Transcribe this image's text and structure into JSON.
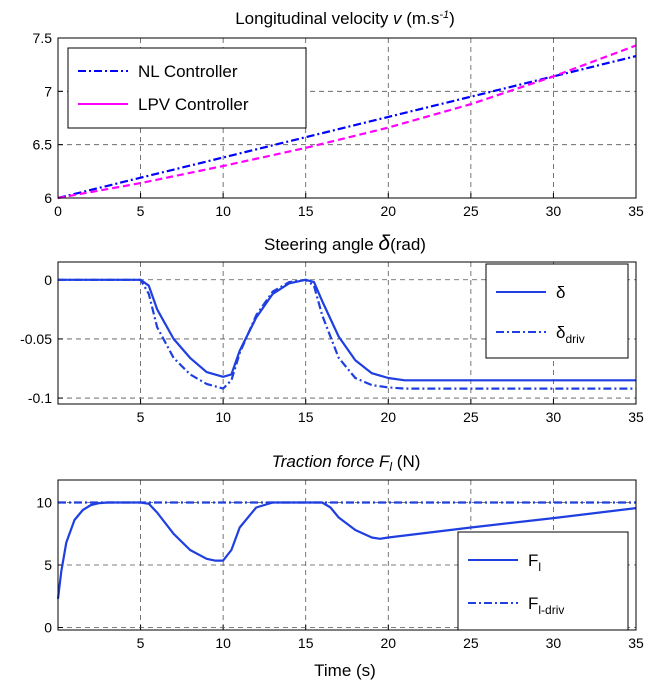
{
  "x_axis_label": "Time (s)",
  "colors": {
    "nl": "#0000ff",
    "lpv": "#ff00ff",
    "blue": "#1f3fe0"
  },
  "chart_data": [
    {
      "type": "line",
      "title": "Longitudinal velocity v (m.s-1)",
      "title_parts": [
        "Longitudinal velocity ",
        "v",
        " (m.s",
        "-1",
        ")"
      ],
      "xlabel": "",
      "ylabel": "",
      "xlim": [
        0,
        35
      ],
      "ylim": [
        6,
        7.5
      ],
      "xticks": [
        "0",
        "5",
        "10",
        "15",
        "20",
        "25",
        "30",
        "35"
      ],
      "yticks": [
        "6",
        "6.5",
        "7",
        "7.5"
      ],
      "grid": true,
      "legend_position": "top-left",
      "series": [
        {
          "name": "NL Controller",
          "style": "dash-dot",
          "color": "#0000ff",
          "x": [
            0,
            5,
            10,
            15,
            20,
            25,
            30,
            35
          ],
          "y": [
            6.0,
            6.19,
            6.38,
            6.57,
            6.76,
            6.95,
            7.14,
            7.33
          ]
        },
        {
          "name": "LPV Controller",
          "style": "dashed",
          "color": "#ff00ff",
          "x": [
            0,
            5,
            10,
            15,
            20,
            25,
            30,
            35
          ],
          "y": [
            6.0,
            6.14,
            6.3,
            6.47,
            6.66,
            6.88,
            7.14,
            7.43
          ]
        }
      ]
    },
    {
      "type": "line",
      "title": "Steering angle δ (rad)",
      "title_parts": [
        "Steering angle ",
        "δ",
        "(rad)"
      ],
      "xlabel": "",
      "ylabel": "",
      "xlim": [
        0,
        35
      ],
      "ylim": [
        -0.105,
        0.015
      ],
      "xticks": [
        "5",
        "10",
        "15",
        "20",
        "25",
        "30",
        "35"
      ],
      "yticks": [
        "0",
        "-0.05",
        "-0.1"
      ],
      "grid": true,
      "legend_position": "top-right",
      "series": [
        {
          "name": "δ",
          "name_sub": "",
          "style": "solid",
          "color": "#1f3fe0",
          "x": [
            0,
            5,
            5.5,
            6,
            7,
            8,
            9,
            10,
            10.5,
            11,
            12,
            13,
            14,
            15,
            15.5,
            16,
            17,
            18,
            19,
            20,
            21,
            22,
            25,
            30,
            35
          ],
          "y": [
            0,
            0,
            -0.005,
            -0.025,
            -0.05,
            -0.066,
            -0.078,
            -0.082,
            -0.08,
            -0.06,
            -0.032,
            -0.012,
            -0.003,
            0,
            -0.002,
            -0.018,
            -0.048,
            -0.068,
            -0.079,
            -0.083,
            -0.085,
            -0.085,
            -0.085,
            -0.085,
            -0.085
          ]
        },
        {
          "name": "δ",
          "name_sub": "driv",
          "style": "dash-dot",
          "color": "#1f3fe0",
          "x": [
            0,
            5,
            5.5,
            6,
            7,
            8,
            9,
            10,
            10.5,
            11,
            12,
            13,
            14,
            15,
            15.5,
            16,
            17,
            18,
            19,
            20,
            21,
            22,
            25,
            30,
            35
          ],
          "y": [
            0,
            0,
            -0.012,
            -0.04,
            -0.066,
            -0.08,
            -0.088,
            -0.092,
            -0.085,
            -0.062,
            -0.03,
            -0.01,
            -0.002,
            0,
            -0.005,
            -0.03,
            -0.066,
            -0.083,
            -0.089,
            -0.091,
            -0.092,
            -0.092,
            -0.092,
            -0.092,
            -0.092
          ]
        }
      ]
    },
    {
      "type": "line",
      "title": "Traction force Fl (N)",
      "title_parts": [
        "Traction force F",
        "l",
        " (N)"
      ],
      "xlabel": "Time (s)",
      "ylabel": "",
      "xlim": [
        0,
        35
      ],
      "ylim": [
        -0.2,
        11.8
      ],
      "xticks": [
        "5",
        "10",
        "15",
        "20",
        "25",
        "30",
        "35"
      ],
      "yticks": [
        "0",
        "5",
        "10"
      ],
      "grid": true,
      "legend_position": "bottom-right",
      "series": [
        {
          "name": "F",
          "name_sub": "l",
          "style": "solid",
          "color": "#1f3fe0",
          "x": [
            0,
            0.2,
            0.5,
            1,
            1.5,
            2,
            2.5,
            3,
            4,
            5,
            5.5,
            6,
            7,
            8,
            9,
            9.5,
            10,
            10.5,
            11,
            12,
            13,
            14,
            15,
            16,
            16.5,
            17,
            18,
            19,
            19.5,
            20,
            25,
            30,
            35
          ],
          "y": [
            2.3,
            4.5,
            6.8,
            8.6,
            9.4,
            9.8,
            9.95,
            10,
            10,
            10,
            9.9,
            9.2,
            7.5,
            6.2,
            5.5,
            5.35,
            5.35,
            6.2,
            8.0,
            9.6,
            10,
            10,
            10,
            10,
            9.6,
            8.8,
            7.8,
            7.2,
            7.1,
            7.2,
            8.0,
            8.75,
            9.55
          ]
        },
        {
          "name": "F",
          "name_sub": "l-driv",
          "style": "dash-dot",
          "color": "#1f3fe0",
          "x": [
            0,
            35
          ],
          "y": [
            10,
            10
          ]
        }
      ]
    }
  ]
}
